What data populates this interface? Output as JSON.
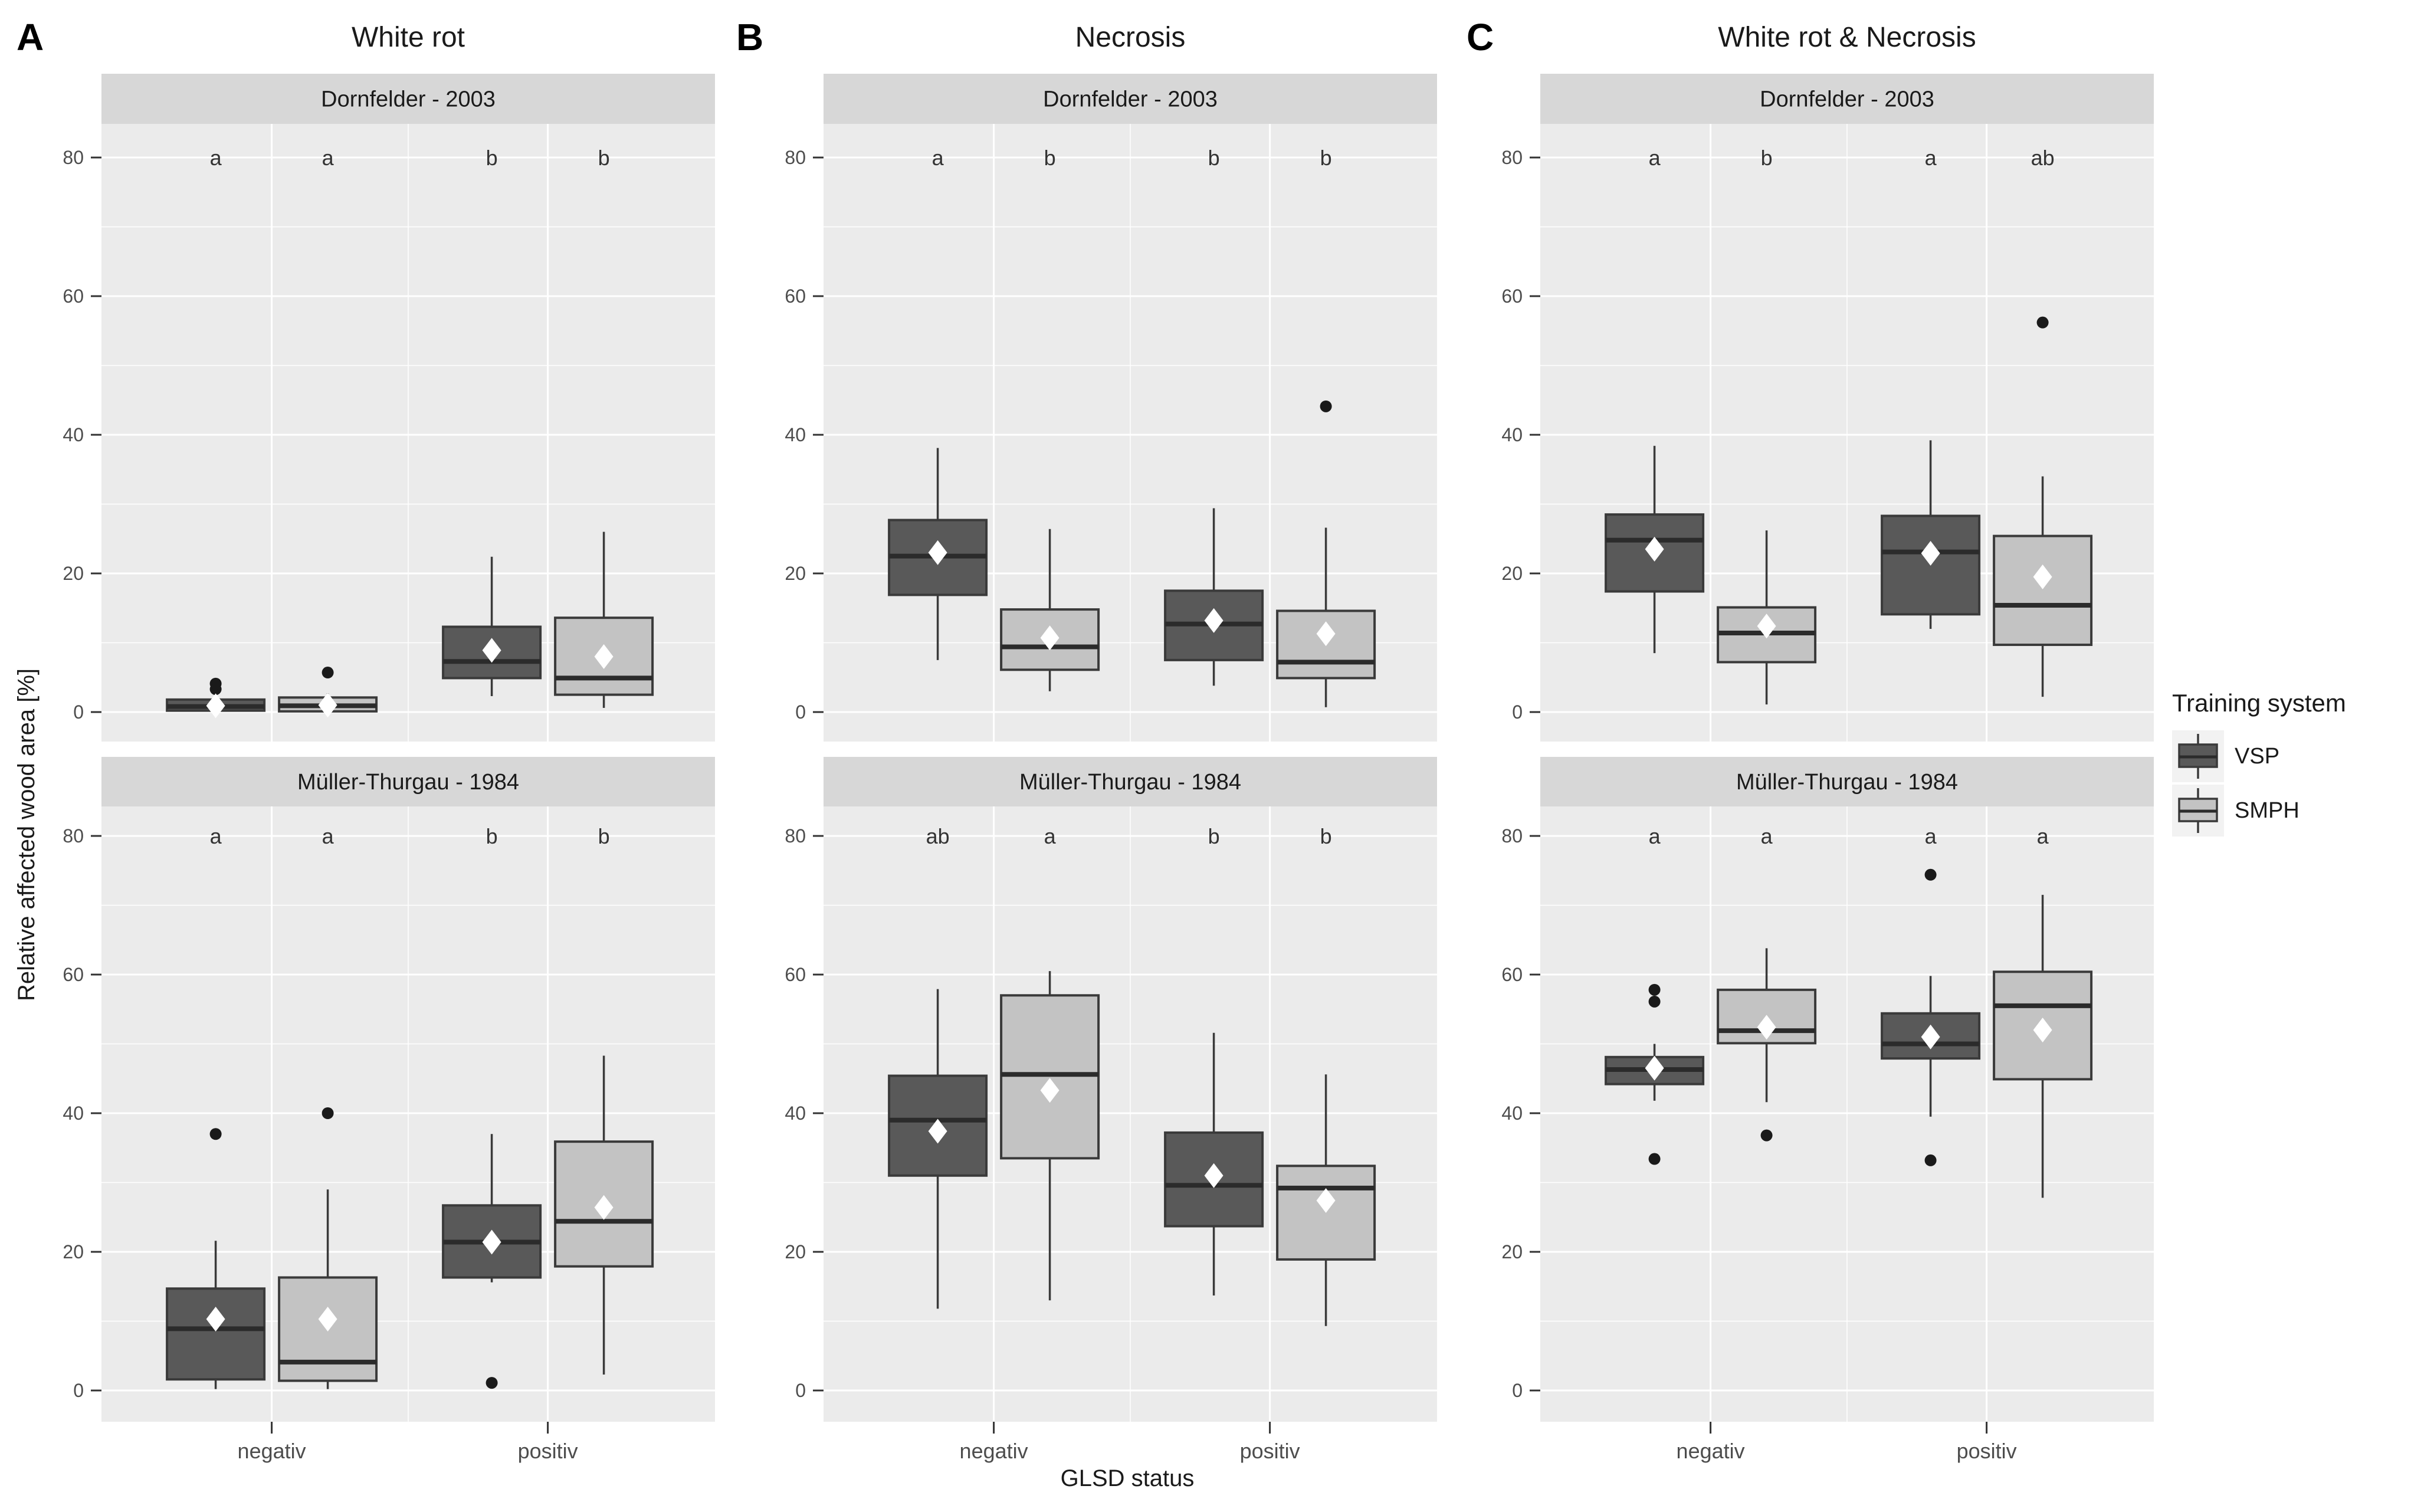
{
  "legend": {
    "title": "Training system",
    "items": [
      {
        "label": "VSP",
        "color": "#595959"
      },
      {
        "label": "SMPH",
        "color": "#c3c3c3"
      }
    ]
  },
  "chart_data": {
    "type": "boxplot",
    "xlabel": "GLSD status",
    "ylabel": "Relative affected wood area [%]",
    "x_categories": [
      "negativ",
      "positiv"
    ],
    "series": [
      "VSP",
      "SMPH"
    ],
    "y_ticks": [
      0,
      20,
      40,
      60,
      80
    ],
    "ylim": [
      -4.5,
      85
    ],
    "grid": "white major/minor on gray panel",
    "legend_position": "right",
    "colors": {
      "VSP": "#595959",
      "SMPH": "#c3c3c3",
      "panel_bg": "#ebebeb",
      "strip_bg": "#d7d7d7",
      "grid": "#ffffff",
      "box_border": "#3a3a3a",
      "median": "#2b2b2b",
      "outlier": "#1a1a1a",
      "mean_marker": "#ffffff",
      "tick_text": "#4d4d4d"
    },
    "columns": [
      {
        "label": "A",
        "title": "White rot",
        "facets": [
          {
            "strip": "Dornfelder - 2003",
            "boxes": [
              {
                "status": "negativ",
                "system": "VSP",
                "letter": "a",
                "whisker_low": 0,
                "q1": 0.2,
                "median": 0.8,
                "q3": 1.8,
                "whisker_high": 2.2,
                "mean": 0.9,
                "outliers": [
                  3.3,
                  4.1
                ]
              },
              {
                "status": "negativ",
                "system": "SMPH",
                "letter": "a",
                "whisker_low": 0,
                "q1": 0.1,
                "median": 0.9,
                "q3": 2.1,
                "whisker_high": 2.7,
                "mean": 1.0,
                "outliers": [
                  5.7
                ]
              },
              {
                "status": "positiv",
                "system": "VSP",
                "letter": "b",
                "whisker_low": 2.3,
                "q1": 4.9,
                "median": 7.3,
                "q3": 12.3,
                "whisker_high": 22.4,
                "mean": 8.9,
                "outliers": []
              },
              {
                "status": "positiv",
                "system": "SMPH",
                "letter": "b",
                "whisker_low": 0.6,
                "q1": 2.5,
                "median": 4.9,
                "q3": 13.6,
                "whisker_high": 26.0,
                "mean": 8.0,
                "outliers": []
              }
            ]
          },
          {
            "strip": "Müller-Thurgau - 1984",
            "boxes": [
              {
                "status": "negativ",
                "system": "VSP",
                "letter": "a",
                "whisker_low": 0.2,
                "q1": 1.6,
                "median": 8.9,
                "q3": 14.7,
                "whisker_high": 21.6,
                "mean": 10.3,
                "outliers": [
                  37.0
                ]
              },
              {
                "status": "negativ",
                "system": "SMPH",
                "letter": "a",
                "whisker_low": 0.2,
                "q1": 1.4,
                "median": 4.1,
                "q3": 16.3,
                "whisker_high": 29.0,
                "mean": 10.3,
                "outliers": [
                  40.0
                ]
              },
              {
                "status": "positiv",
                "system": "VSP",
                "letter": "b",
                "whisker_low": 15.6,
                "q1": 16.3,
                "median": 21.4,
                "q3": 26.7,
                "whisker_high": 37.0,
                "mean": 21.4,
                "outliers": [
                  1.1
                ]
              },
              {
                "status": "positiv",
                "system": "SMPH",
                "letter": "b",
                "whisker_low": 2.3,
                "q1": 17.9,
                "median": 24.4,
                "q3": 35.9,
                "whisker_high": 48.3,
                "mean": 26.4,
                "outliers": []
              }
            ]
          }
        ]
      },
      {
        "label": "B",
        "title": "Necrosis",
        "facets": [
          {
            "strip": "Dornfelder - 2003",
            "boxes": [
              {
                "status": "negativ",
                "system": "VSP",
                "letter": "a",
                "whisker_low": 7.5,
                "q1": 16.9,
                "median": 22.5,
                "q3": 27.7,
                "whisker_high": 38.1,
                "mean": 23.0,
                "outliers": []
              },
              {
                "status": "negativ",
                "system": "SMPH",
                "letter": "b",
                "whisker_low": 3.0,
                "q1": 6.1,
                "median": 9.4,
                "q3": 14.8,
                "whisker_high": 26.4,
                "mean": 10.7,
                "outliers": []
              },
              {
                "status": "positiv",
                "system": "VSP",
                "letter": "b",
                "whisker_low": 3.8,
                "q1": 7.5,
                "median": 12.7,
                "q3": 17.5,
                "whisker_high": 29.4,
                "mean": 13.2,
                "outliers": []
              },
              {
                "status": "positiv",
                "system": "SMPH",
                "letter": "b",
                "whisker_low": 0.7,
                "q1": 4.9,
                "median": 7.2,
                "q3": 14.6,
                "whisker_high": 26.6,
                "mean": 11.3,
                "outliers": [
                  44.1
                ]
              }
            ]
          },
          {
            "strip": "Müller-Thurgau - 1984",
            "boxes": [
              {
                "status": "negativ",
                "system": "VSP",
                "letter": "ab",
                "whisker_low": 11.8,
                "q1": 31.0,
                "median": 39.0,
                "q3": 45.4,
                "whisker_high": 57.9,
                "mean": 37.4,
                "outliers": []
              },
              {
                "status": "negativ",
                "system": "SMPH",
                "letter": "a",
                "whisker_low": 13.0,
                "q1": 33.5,
                "median": 45.6,
                "q3": 57.0,
                "whisker_high": 60.5,
                "mean": 43.3,
                "outliers": []
              },
              {
                "status": "positiv",
                "system": "VSP",
                "letter": "b",
                "whisker_low": 13.7,
                "q1": 23.7,
                "median": 29.6,
                "q3": 37.2,
                "whisker_high": 51.6,
                "mean": 31.0,
                "outliers": []
              },
              {
                "status": "positiv",
                "system": "SMPH",
                "letter": "b",
                "whisker_low": 9.3,
                "q1": 18.9,
                "median": 29.2,
                "q3": 32.4,
                "whisker_high": 45.6,
                "mean": 27.4,
                "outliers": []
              }
            ]
          }
        ]
      },
      {
        "label": "C",
        "title": "White rot & Necrosis",
        "facets": [
          {
            "strip": "Dornfelder - 2003",
            "boxes": [
              {
                "status": "negativ",
                "system": "VSP",
                "letter": "a",
                "whisker_low": 8.5,
                "q1": 17.4,
                "median": 24.8,
                "q3": 28.5,
                "whisker_high": 38.4,
                "mean": 23.5,
                "outliers": []
              },
              {
                "status": "negativ",
                "system": "SMPH",
                "letter": "b",
                "whisker_low": 1.1,
                "q1": 7.2,
                "median": 11.4,
                "q3": 15.1,
                "whisker_high": 26.2,
                "mean": 12.4,
                "outliers": []
              },
              {
                "status": "positiv",
                "system": "VSP",
                "letter": "a",
                "whisker_low": 12.0,
                "q1": 14.1,
                "median": 23.1,
                "q3": 28.3,
                "whisker_high": 39.2,
                "mean": 22.9,
                "outliers": []
              },
              {
                "status": "positiv",
                "system": "SMPH",
                "letter": "ab",
                "whisker_low": 2.2,
                "q1": 9.7,
                "median": 15.4,
                "q3": 25.4,
                "whisker_high": 34.0,
                "mean": 19.5,
                "outliers": [
                  56.2
                ]
              }
            ]
          },
          {
            "strip": "Müller-Thurgau - 1984",
            "boxes": [
              {
                "status": "negativ",
                "system": "VSP",
                "letter": "a",
                "whisker_low": 41.8,
                "q1": 44.2,
                "median": 46.3,
                "q3": 48.1,
                "whisker_high": 50.0,
                "mean": 46.5,
                "outliers": [
                  57.8,
                  56.1,
                  33.4
                ]
              },
              {
                "status": "negativ",
                "system": "SMPH",
                "letter": "a",
                "whisker_low": 41.6,
                "q1": 50.1,
                "median": 51.9,
                "q3": 57.8,
                "whisker_high": 63.8,
                "mean": 52.4,
                "outliers": [
                  36.8
                ]
              },
              {
                "status": "positiv",
                "system": "VSP",
                "letter": "a",
                "whisker_low": 39.5,
                "q1": 47.9,
                "median": 50.0,
                "q3": 54.4,
                "whisker_high": 59.8,
                "mean": 51.0,
                "outliers": [
                  74.4,
                  33.2
                ]
              },
              {
                "status": "positiv",
                "system": "SMPH",
                "letter": "a",
                "whisker_low": 27.8,
                "q1": 44.9,
                "median": 55.5,
                "q3": 60.4,
                "whisker_high": 71.5,
                "mean": 52.0,
                "outliers": []
              }
            ]
          }
        ]
      }
    ]
  }
}
